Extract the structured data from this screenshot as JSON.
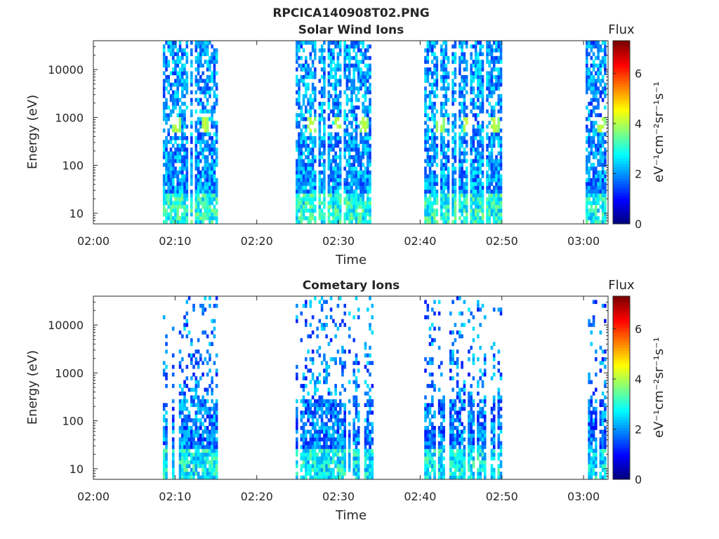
{
  "figure_title": "RPCICA140908T02.PNG",
  "colors": {
    "colormap": "jet",
    "axes": "#262626",
    "background": "#ffffff"
  },
  "chart_data": [
    {
      "type": "heatmap",
      "title": "Solar Wind Ions",
      "xlabel": "Time",
      "ylabel": "Energy (eV)",
      "y_scale": "log",
      "xlim": [
        "02:00",
        "03:03"
      ],
      "ylim": [
        6,
        40000
      ],
      "x_tick_labels": [
        "02:00",
        "02:10",
        "02:20",
        "02:30",
        "02:40",
        "02:50",
        "03:00"
      ],
      "y_tick_labels": [
        "10",
        "100",
        "1000",
        "10000"
      ],
      "colorbar": {
        "title": "Flux",
        "label": "eV⁻¹cm⁻²sr⁻¹s⁻¹",
        "range": [
          0,
          7.3
        ],
        "tick_labels": [
          "0",
          "2",
          "4",
          "6"
        ]
      },
      "grid": false,
      "data_intervals": [
        {
          "start": "02:08:30",
          "end": "02:15:00",
          "flux_level": 2.1
        },
        {
          "start": "02:24:45",
          "end": "02:34:15",
          "flux_level": 2.1
        },
        {
          "start": "02:40:30",
          "end": "02:50:00",
          "flux_level": 2.1
        },
        {
          "start": "03:00:15",
          "end": "03:02:45",
          "flux_level": 2.0
        }
      ],
      "peak_energy_eV": 650,
      "peak_flux": 4.2,
      "peak_times": [
        "02:10:00",
        "02:13:30",
        "02:26:30",
        "02:29:45",
        "02:33:00",
        "02:42:15",
        "02:45:30",
        "02:49:00",
        "03:02:00"
      ]
    },
    {
      "type": "heatmap",
      "title": "Cometary Ions",
      "xlabel": "Time",
      "ylabel": "Energy (eV)",
      "y_scale": "log",
      "xlim": [
        "02:00",
        "03:03"
      ],
      "ylim": [
        6,
        40000
      ],
      "x_tick_labels": [
        "02:00",
        "02:10",
        "02:20",
        "02:30",
        "02:40",
        "02:50",
        "03:00"
      ],
      "y_tick_labels": [
        "10",
        "100",
        "1000",
        "10000"
      ],
      "colorbar": {
        "title": "Flux",
        "label": "eV⁻¹cm⁻²sr⁻¹s⁻¹",
        "range": [
          0,
          7.3
        ],
        "tick_labels": [
          "0",
          "2",
          "4",
          "6"
        ]
      },
      "grid": false,
      "data_intervals": [
        {
          "start": "02:08:30",
          "end": "02:15:00",
          "flux_level": 1.9
        },
        {
          "start": "02:24:45",
          "end": "02:34:15",
          "flux_level": 1.9
        },
        {
          "start": "02:40:30",
          "end": "02:50:00",
          "flux_level": 1.9
        },
        {
          "start": "03:00:15",
          "end": "03:02:45",
          "flux_level": 1.8
        }
      ]
    }
  ]
}
